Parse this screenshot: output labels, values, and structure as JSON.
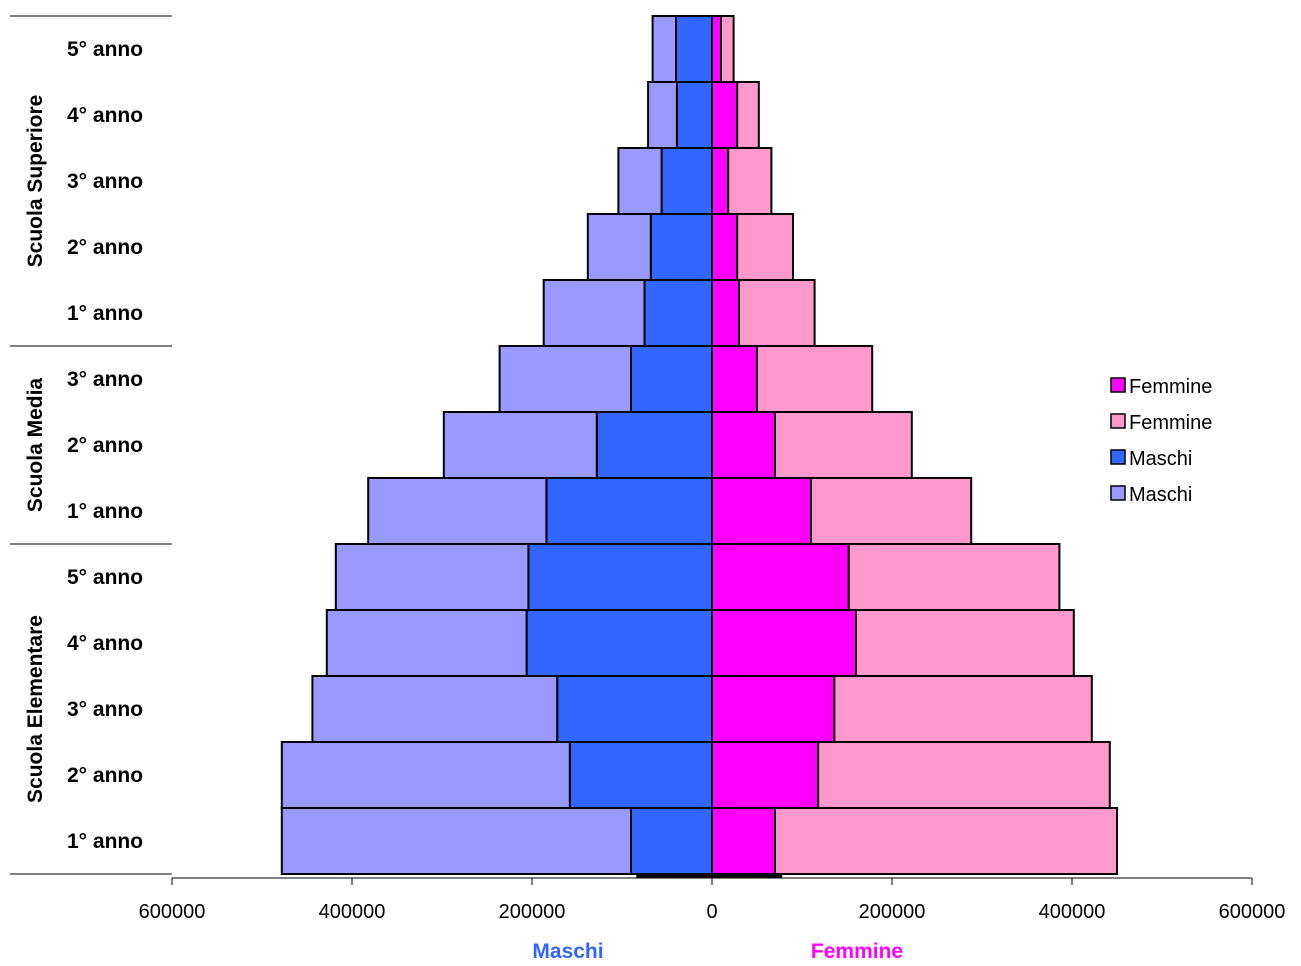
{
  "chart_data": {
    "type": "bar",
    "orientation": "horizontal-pyramid",
    "title": "",
    "xlim": [
      -600000,
      600000
    ],
    "xticks": [
      -600000,
      -400000,
      -200000,
      0,
      200000,
      400000,
      600000
    ],
    "xtick_labels": [
      "600000",
      "400000",
      "200000",
      "0",
      "200000",
      "400000",
      "600000"
    ],
    "side_labels": {
      "left": "Maschi",
      "right": "Femmine"
    },
    "categories": [
      "1° anno",
      "2° anno",
      "3° anno",
      "4° anno",
      "5° anno",
      "1° anno",
      "2° anno",
      "3° anno",
      "1° anno",
      "2° anno",
      "3° anno",
      "4° anno",
      "5° anno"
    ],
    "groups": [
      {
        "label": "Scuola Elementare",
        "start": 0,
        "count": 5
      },
      {
        "label": "Scuola Media",
        "start": 5,
        "count": 3
      },
      {
        "label": "Scuola Superiore",
        "start": 8,
        "count": 5
      }
    ],
    "series": [
      {
        "name": "Femmine",
        "side": "right",
        "color": "#ff00ff",
        "values": [
          70000,
          118000,
          136000,
          160000,
          152000,
          110000,
          70000,
          50000,
          30000,
          28000,
          18000,
          28000,
          10000
        ]
      },
      {
        "name": "Femmine",
        "side": "right",
        "color": "#ff99cc",
        "values": [
          380000,
          324000,
          286000,
          242000,
          234000,
          178000,
          152000,
          128000,
          84000,
          62000,
          48000,
          24000,
          14000
        ]
      },
      {
        "name": "Maschi",
        "side": "left",
        "color": "#3366ff",
        "values": [
          90000,
          158000,
          172000,
          206000,
          204000,
          184000,
          128000,
          90000,
          75000,
          68000,
          56000,
          39000,
          40000
        ]
      },
      {
        "name": "Maschi",
        "side": "left",
        "color": "#9999ff",
        "values": [
          388000,
          320000,
          272000,
          222000,
          214000,
          198000,
          170000,
          146000,
          112000,
          70000,
          48000,
          32000,
          26000
        ]
      }
    ],
    "legend": {
      "position": "right",
      "entries": [
        {
          "label": "Femmine",
          "color": "#ff00ff"
        },
        {
          "label": "Femmine",
          "color": "#ff99cc"
        },
        {
          "label": "Maschi",
          "color": "#3366ff"
        },
        {
          "label": "Maschi",
          "color": "#9999ff"
        }
      ]
    },
    "colors": {
      "maschi_label": "#3366ff",
      "femmine_label": "#ff00ff"
    }
  }
}
